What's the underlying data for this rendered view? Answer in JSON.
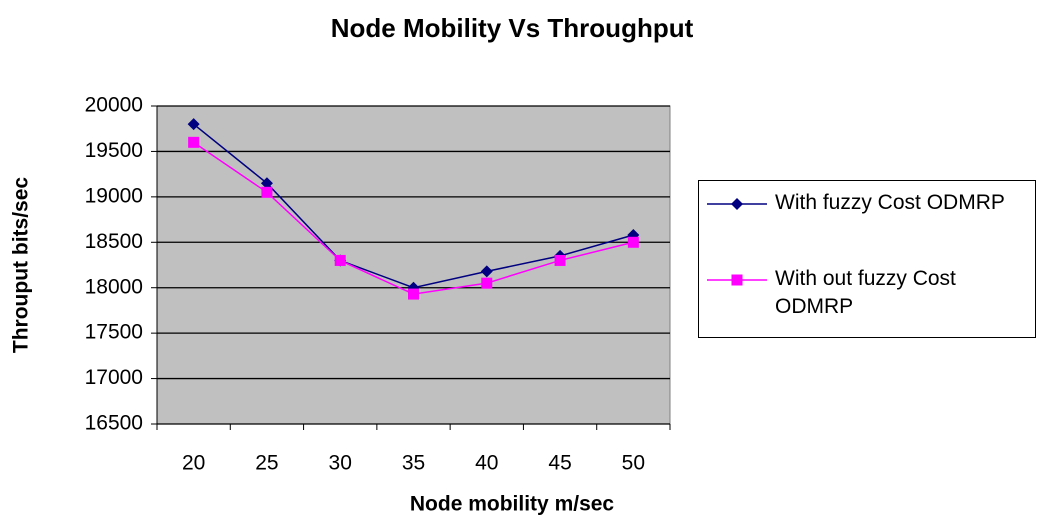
{
  "chart_data": {
    "type": "line",
    "title": "Node Mobility Vs Throughput",
    "x_label": "Node mobility m/sec",
    "y_label": "Throuput bits/sec",
    "categories": [
      "20",
      "25",
      "30",
      "35",
      "40",
      "45",
      "50"
    ],
    "series": [
      {
        "name": "With fuzzy Cost ODMRP",
        "color": "#000080",
        "marker": "diamond",
        "values": [
          19800,
          19150,
          18300,
          18000,
          18180,
          18350,
          18580
        ]
      },
      {
        "name": "With out fuzzy Cost ODMRP",
        "color": "#ff00ff",
        "marker": "square",
        "values": [
          19600,
          19050,
          18300,
          17930,
          18050,
          18300,
          18500
        ]
      }
    ],
    "ylim": [
      16500,
      20000
    ],
    "yticks": [
      16500,
      17000,
      17500,
      18000,
      18500,
      19000,
      19500,
      20000
    ],
    "grid": true,
    "legend": "right",
    "plot_background": "#c0c0c0"
  }
}
